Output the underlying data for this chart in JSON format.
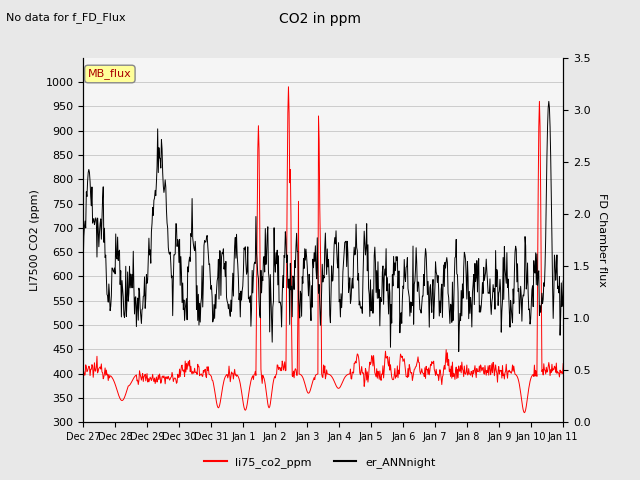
{
  "title": "CO2 in ppm",
  "top_label": "No data for f_FD_Flux",
  "ylabel_left": "LI7500 CO2 (ppm)",
  "ylabel_right": "FD Chamber flux",
  "ylim_left": [
    300,
    1050
  ],
  "ylim_right": [
    0.0,
    3.5
  ],
  "yticks_left": [
    300,
    350,
    400,
    450,
    500,
    550,
    600,
    650,
    700,
    750,
    800,
    850,
    900,
    950,
    1000
  ],
  "yticks_right": [
    0.0,
    0.5,
    1.0,
    1.5,
    2.0,
    2.5,
    3.0,
    3.5
  ],
  "xtick_labels": [
    "Dec 27",
    "Dec 28",
    "Dec 29",
    "Dec 30",
    "Dec 31",
    "Jan 1",
    "Jan 2",
    "Jan 3",
    "Jan 4",
    "Jan 5",
    "Jan 6",
    "Jan 7",
    "Jan 8",
    "Jan 9",
    "Jan 10",
    "Jan 11"
  ],
  "legend_entries": [
    "li75_co2_ppm",
    "er_ANNnight"
  ],
  "legend_colors": [
    "red",
    "black"
  ],
  "mb_flux_box_color": "#ffff99",
  "mb_flux_text_color": "#aa0000",
  "background_color": "#e8e8e8",
  "plot_bg_color": "#f5f5f5",
  "line_color_red": "#ff0000",
  "line_color_black": "#000000",
  "grid_color": "#cccccc"
}
